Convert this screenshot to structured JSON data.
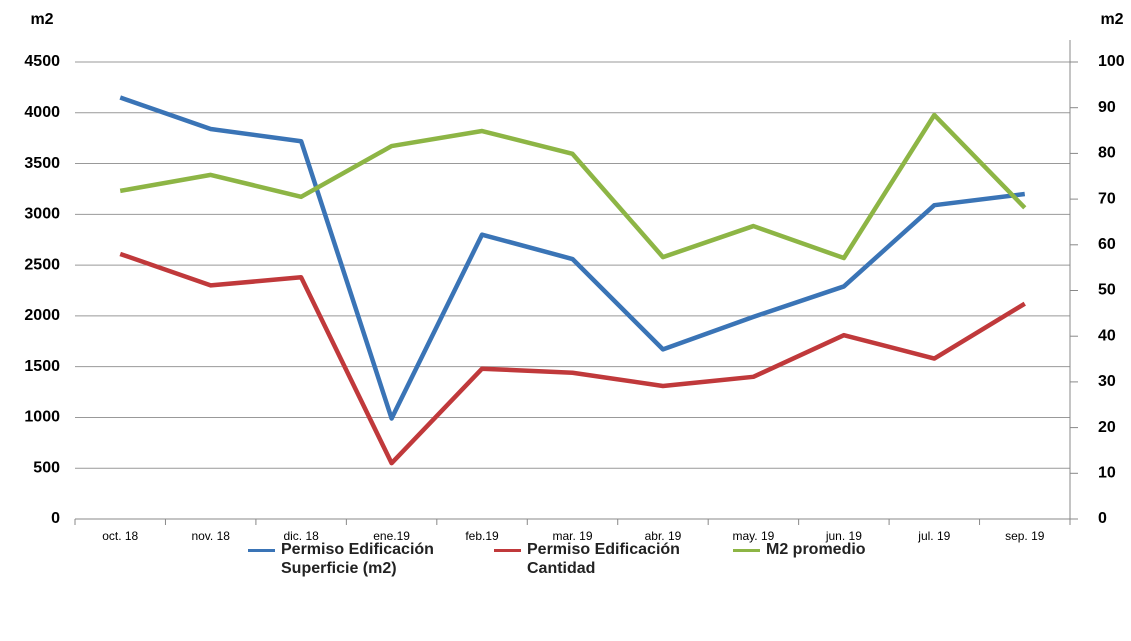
{
  "chart_data": {
    "type": "line",
    "ylabel": "m2",
    "y2label": "m2",
    "categories": [
      "oct. 18",
      "nov. 18",
      "dic. 18",
      "ene.19",
      "feb.19",
      "mar. 19",
      "abr. 19",
      "may. 19",
      "jun. 19",
      "jul. 19",
      "sep. 19"
    ],
    "series": [
      {
        "name": "Permiso Edificación Superficie (m2)",
        "color": "#3a74b6",
        "values": [
          4150,
          3840,
          3720,
          990,
          2800,
          2560,
          1670,
          1990,
          2290,
          3090,
          3200
        ]
      },
      {
        "name": "Permiso Edificación Cantidad",
        "color": "#c0393b",
        "values": [
          2610,
          2300,
          2380,
          550,
          1480,
          1440,
          1310,
          1400,
          1810,
          1580,
          2120
        ]
      },
      {
        "name": "M2 promedio",
        "color": "#8db545",
        "axis": "y2",
        "values": [
          71.8,
          75.3,
          70.5,
          81.6,
          84.9,
          79.9,
          57.3,
          64.1,
          57.1,
          88.4,
          68.1
        ]
      }
    ],
    "ylim": [
      0,
      4500
    ],
    "yticks": [
      0,
      500,
      1000,
      1500,
      2000,
      2500,
      3000,
      3500,
      4000,
      4500
    ],
    "y2lim": [
      0,
      100
    ],
    "y2ticks": [
      0,
      10,
      20,
      30,
      40,
      50,
      60,
      70,
      80,
      90,
      100
    ],
    "grid": true,
    "legend": "bottom"
  }
}
